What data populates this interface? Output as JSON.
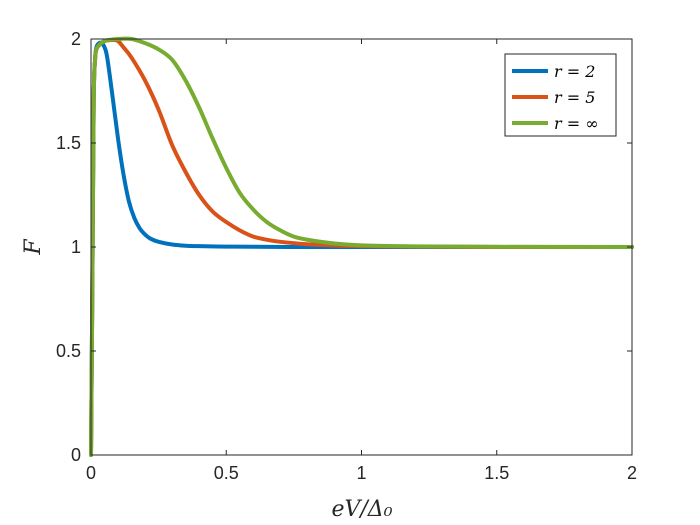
{
  "chart_data": {
    "type": "line",
    "title": "",
    "xlabel": "eV/Δ₀",
    "ylabel": "F",
    "xlim": [
      0,
      2
    ],
    "ylim": [
      0,
      2
    ],
    "x_ticks": [
      0,
      0.5,
      1,
      1.5,
      2
    ],
    "x_tick_labels": [
      "0",
      "0.5",
      "1",
      "1.5",
      "2"
    ],
    "y_ticks": [
      0,
      0.5,
      1,
      1.5,
      2
    ],
    "y_tick_labels": [
      "0",
      "0.5",
      "1",
      "1.5",
      "2"
    ],
    "grid": false,
    "legend_position": "top-right",
    "series": [
      {
        "name": "r = 2",
        "color": "#0072BD",
        "x": [
          0,
          0.005,
          0.01,
          0.015,
          0.02,
          0.03,
          0.04,
          0.05,
          0.06,
          0.08,
          0.1,
          0.12,
          0.14,
          0.16,
          0.18,
          0.2,
          0.22,
          0.25,
          0.3,
          0.35,
          0.4,
          0.5,
          0.6,
          0.8,
          1.0,
          1.5,
          2.0
        ],
        "y": [
          0,
          0.8,
          1.7,
          1.9,
          1.96,
          1.98,
          1.98,
          1.96,
          1.91,
          1.72,
          1.52,
          1.35,
          1.22,
          1.14,
          1.09,
          1.06,
          1.04,
          1.025,
          1.012,
          1.006,
          1.004,
          1.002,
          1.001,
          1.0,
          1.0,
          1.0,
          1.0
        ]
      },
      {
        "name": "r = 5",
        "color": "#D95319",
        "x": [
          0,
          0.005,
          0.01,
          0.015,
          0.02,
          0.03,
          0.05,
          0.08,
          0.1,
          0.12,
          0.15,
          0.2,
          0.25,
          0.3,
          0.35,
          0.4,
          0.45,
          0.5,
          0.55,
          0.6,
          0.65,
          0.7,
          0.8,
          0.9,
          1.0,
          1.2,
          1.5,
          2.0
        ],
        "y": [
          0,
          0.8,
          1.7,
          1.9,
          1.95,
          1.97,
          1.99,
          1.995,
          1.99,
          1.96,
          1.91,
          1.8,
          1.66,
          1.49,
          1.36,
          1.25,
          1.17,
          1.12,
          1.08,
          1.05,
          1.035,
          1.025,
          1.013,
          1.007,
          1.004,
          1.002,
          1.0,
          1.0
        ]
      },
      {
        "name": "r = ∞",
        "color": "#77AC30",
        "x": [
          0,
          0.005,
          0.01,
          0.015,
          0.02,
          0.03,
          0.05,
          0.1,
          0.15,
          0.2,
          0.25,
          0.3,
          0.35,
          0.4,
          0.45,
          0.5,
          0.55,
          0.6,
          0.65,
          0.7,
          0.75,
          0.8,
          0.9,
          1.0,
          1.2,
          1.5,
          2.0
        ],
        "y": [
          0,
          0.8,
          1.7,
          1.9,
          1.95,
          1.97,
          1.99,
          2.0,
          2.0,
          1.98,
          1.95,
          1.9,
          1.8,
          1.67,
          1.52,
          1.38,
          1.26,
          1.18,
          1.12,
          1.08,
          1.05,
          1.035,
          1.017,
          1.008,
          1.003,
          1.001,
          1.0
        ]
      }
    ]
  }
}
